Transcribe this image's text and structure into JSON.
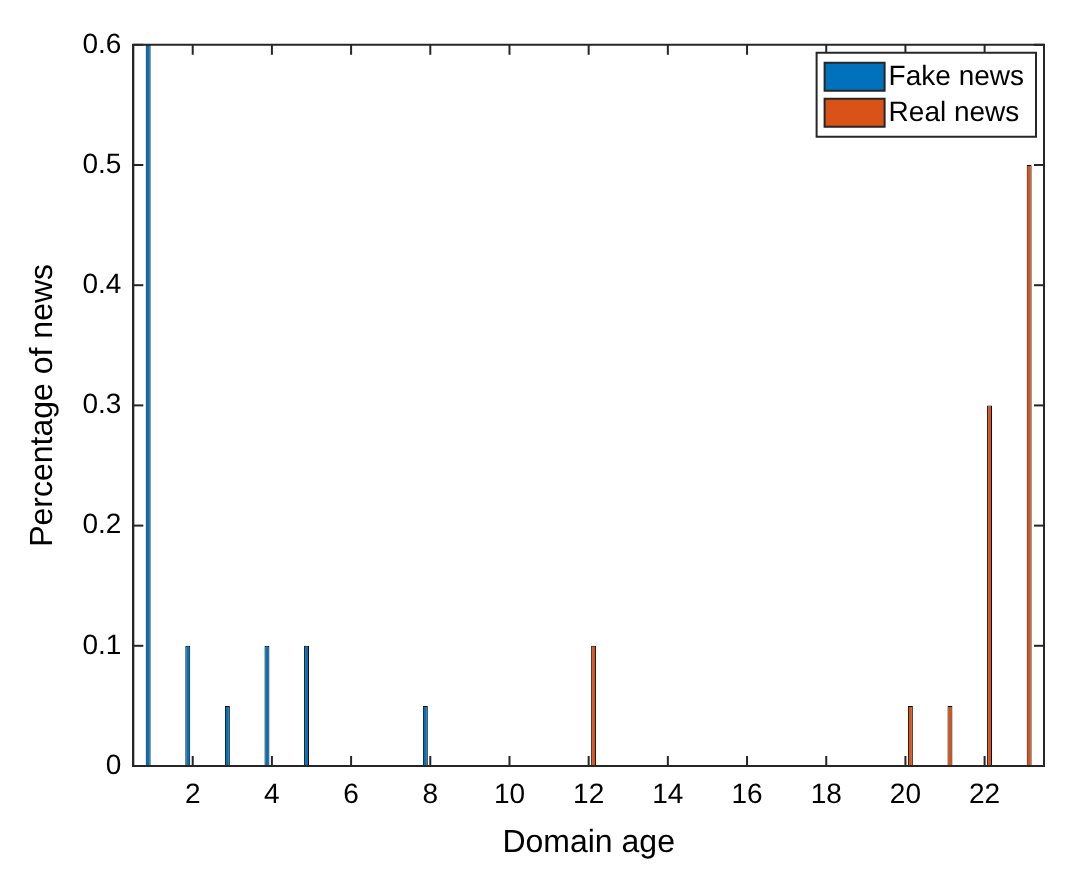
{
  "chart_data": {
    "type": "bar",
    "xlabel": "Domain age",
    "ylabel": "Percentage of news",
    "categories": [
      null,
      "2",
      null,
      "4",
      null,
      "6",
      null,
      "8",
      null,
      "10",
      null,
      "12",
      null,
      "14",
      null,
      "16",
      null,
      "18",
      null,
      "20",
      null,
      "22",
      null
    ],
    "series": [
      {
        "name": "Fake news",
        "color": "#0072bd",
        "values": [
          0.6,
          0.1,
          0.05,
          0.1,
          0.1,
          null,
          null,
          0.05,
          null,
          null,
          null,
          null,
          null,
          null,
          null,
          null,
          null,
          null,
          null,
          null,
          null,
          null,
          null
        ]
      },
      {
        "name": "Real news",
        "color": "#d95319",
        "values": [
          null,
          null,
          null,
          null,
          null,
          null,
          null,
          null,
          null,
          null,
          null,
          0.1,
          null,
          null,
          null,
          null,
          null,
          null,
          null,
          0.05,
          0.05,
          0.3,
          0.5
        ]
      }
    ],
    "ylim": [
      0,
      0.6
    ],
    "yticks": [
      0,
      0.1,
      0.2,
      0.3,
      0.4,
      0.5,
      0.6
    ],
    "grid": false,
    "legend": "top right"
  }
}
